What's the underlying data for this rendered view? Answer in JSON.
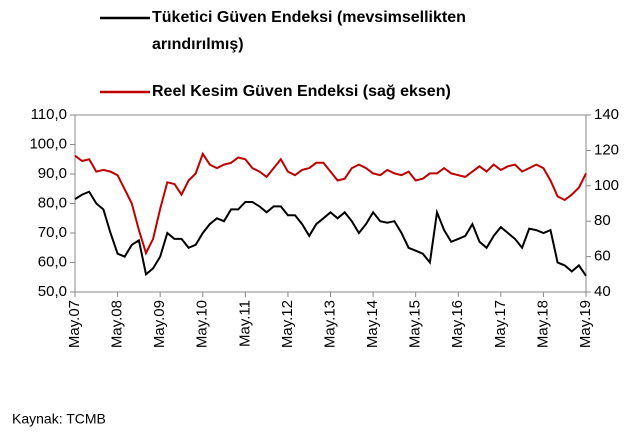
{
  "chart_data": {
    "type": "line",
    "legend": [
      "Tüketici Güven Endeksi (mevsimsellikten",
      "arındırılmış)"
    ],
    "source": "Kaynak: TCMB",
    "categories": [
      "May.07",
      null,
      null,
      null,
      null,
      null,
      "May.08",
      null,
      null,
      null,
      null,
      null,
      "May.09",
      null,
      null,
      null,
      null,
      null,
      "May.10",
      null,
      null,
      null,
      null,
      null,
      "May.11",
      null,
      null,
      null,
      null,
      null,
      "May.12",
      null,
      null,
      null,
      null,
      null,
      "May.13",
      null,
      null,
      null,
      null,
      null,
      "May.14",
      null,
      null,
      null,
      null,
      null,
      "May.15",
      null,
      null,
      null,
      null,
      null,
      "May.16",
      null,
      null,
      null,
      null,
      null,
      "May.17",
      null,
      null,
      null,
      null,
      null,
      "May.18",
      null,
      null,
      null,
      null,
      null,
      "May.19"
    ],
    "series": [
      {
        "name": "Tüketici Güven Endeksi (mevsimsellikten arındırılmış)",
        "color": "#000000",
        "axis": "y",
        "values": [
          81.5,
          83,
          84,
          80,
          78,
          70,
          63,
          62,
          66,
          67.5,
          56,
          58,
          62,
          70,
          68,
          68,
          65,
          66,
          70,
          73,
          75,
          74,
          78,
          78,
          80.5,
          80.5,
          79,
          77,
          79,
          79,
          76,
          76,
          73,
          69,
          73,
          75,
          77,
          75,
          77,
          74,
          70,
          73,
          77,
          74,
          73.5,
          74,
          70,
          65,
          64,
          63,
          60,
          77,
          71,
          67,
          68,
          69,
          73,
          67,
          65,
          69,
          72,
          70,
          68,
          65,
          71.5,
          71,
          70,
          71,
          60,
          59,
          57,
          59,
          55.5
        ]
      },
      {
        "name": "Reel Kesim Güven Endeksi (sağ eksen)",
        "color": "#c00000",
        "axis": "y2",
        "values": [
          117,
          114,
          115,
          108,
          109,
          108,
          106,
          98,
          90,
          75,
          62,
          70,
          87,
          102,
          101,
          95,
          103,
          107,
          118,
          112,
          110,
          112,
          113,
          116,
          115,
          110,
          108,
          105,
          110,
          115,
          108,
          106,
          109,
          110,
          113,
          113,
          108,
          103,
          104,
          110,
          112,
          110,
          107,
          106,
          109,
          107,
          106,
          108,
          103,
          104,
          107,
          107,
          110,
          107,
          106,
          105,
          108,
          111,
          108,
          112,
          109,
          111,
          112,
          108,
          110,
          112,
          110,
          103,
          94,
          92,
          95,
          99,
          107
        ]
      }
    ],
    "ylim": [
      50,
      110
    ],
    "yticks": [
      {
        "value": 50,
        "label": "50,0"
      },
      {
        "value": 60,
        "label": "60,0"
      },
      {
        "value": 70,
        "label": "70,0"
      },
      {
        "value": 80,
        "label": "80,0"
      },
      {
        "value": 90,
        "label": "90,0"
      },
      {
        "value": 100,
        "label": "100,0"
      },
      {
        "value": 110,
        "label": "110,0"
      }
    ],
    "y2lim": [
      40,
      140
    ],
    "y2ticks": [
      40,
      60,
      80,
      100,
      120,
      140
    ]
  }
}
